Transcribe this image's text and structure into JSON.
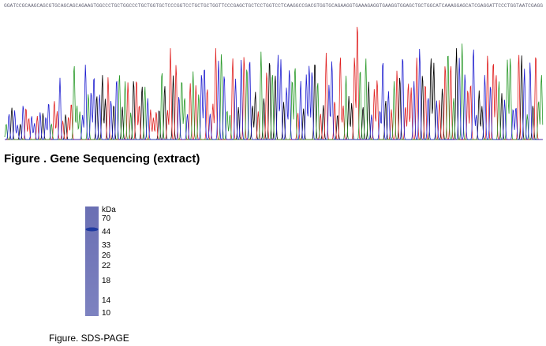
{
  "sequencing": {
    "sequence": "GGATCCGCAAGCAGCGTGCAGCAGCAGAAGTGGCCCTGCTGGCCCTGCTGGTGCTCCCGGTCCTGCTGCTGGTTCCCGAGCTGCTCCTGGTCCTCAAGGCCGACGTGGTGCAGAAGGTGAAAGAGGTGAAGGTGGAGCTGCTGGCATCAAAGGAGCATCGAGGATTCCCTGGTAATCGAGG",
    "caption": "Figure . Gene Sequencing (extract)"
  },
  "gel": {
    "unit": "kDa",
    "markers": [
      "70",
      "44",
      "33",
      "26",
      "22",
      "18",
      "14",
      "10"
    ],
    "caption": "Figure. SDS-PAGE"
  }
}
